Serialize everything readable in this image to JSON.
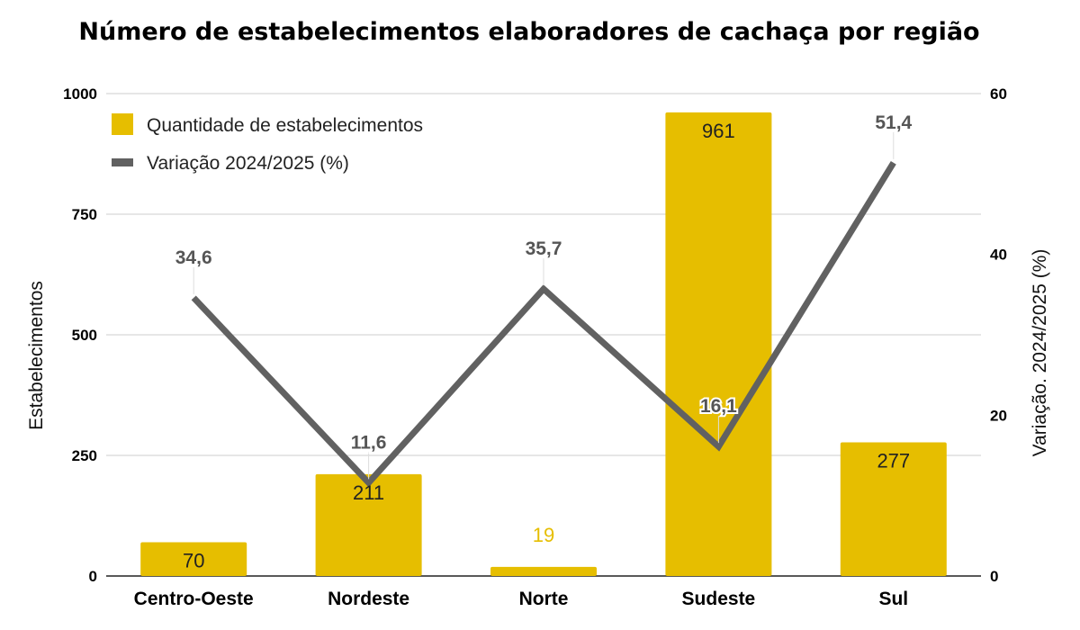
{
  "chart_data": {
    "type": "bar",
    "title": "Número de estabelecimentos elaboradores de cachaça por região",
    "categories": [
      "Centro-Oeste",
      "Nordeste",
      "Norte",
      "Sudeste",
      "Sul"
    ],
    "y_left": {
      "label": "Estabelecimentos",
      "range": [
        0,
        1000
      ],
      "ticks": [
        "0",
        "250",
        "500",
        "750",
        "1000"
      ]
    },
    "y_right": {
      "label": "Variação. 2024/2025 (%)",
      "range": [
        0,
        60
      ],
      "ticks": [
        "0",
        "20",
        "40",
        "60"
      ]
    },
    "grid": true,
    "legend_position": "top-left",
    "series": [
      {
        "name": "Quantidade de estabelecimentos",
        "type": "bar",
        "axis": "left",
        "color": "#E6BE00",
        "values": [
          70,
          211,
          19,
          961,
          277
        ],
        "labels": [
          "70",
          "211",
          "19",
          "961",
          "277"
        ]
      },
      {
        "name": "Variação 2024/2025 (%)",
        "type": "line",
        "axis": "right",
        "color": "#616161",
        "values": [
          34.6,
          11.6,
          35.7,
          16.1,
          51.4
        ],
        "labels": [
          "34,6",
          "11,6",
          "35,7",
          "16,1",
          "51,4"
        ]
      }
    ]
  }
}
